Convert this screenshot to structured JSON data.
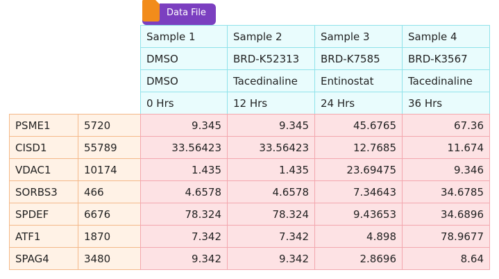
{
  "tag": {
    "label": "Data File",
    "icon": "document-icon"
  },
  "samples": [
    {
      "name": "Sample 1",
      "compound_id": "DMSO",
      "compound": "DMSO",
      "time": "0 Hrs"
    },
    {
      "name": "Sample 2",
      "compound_id": "BRD-K52313",
      "compound": "Tacedinaline",
      "time": "12 Hrs"
    },
    {
      "name": "Sample 3",
      "compound_id": "BRD-K7585",
      "compound": "Entinostat",
      "time": "24 Hrs"
    },
    {
      "name": "Sample 4",
      "compound_id": "BRD-K3567",
      "compound": "Tacedinaline",
      "time": "36 Hrs"
    }
  ],
  "genes": [
    {
      "symbol": "PSME1",
      "id": "5720",
      "values": [
        "9.345",
        "9.345",
        "45.6765",
        "67.36"
      ]
    },
    {
      "symbol": "CISD1",
      "id": "55789",
      "values": [
        "33.56423",
        "33.56423",
        "12.7685",
        "11.674"
      ]
    },
    {
      "symbol": "VDAC1",
      "id": "10174",
      "values": [
        "1.435",
        "1.435",
        "23.69475",
        "9.346"
      ]
    },
    {
      "symbol": "SORBS3",
      "id": "466",
      "values": [
        "4.6578",
        "4.6578",
        "7.34643",
        "34.6785"
      ]
    },
    {
      "symbol": "SPDEF",
      "id": "6676",
      "values": [
        "78.324",
        "78.324",
        "9.43653",
        "34.6896"
      ]
    },
    {
      "symbol": "ATF1",
      "id": "1870",
      "values": [
        "7.342",
        "7.342",
        "4.898",
        "78.9677"
      ]
    },
    {
      "symbol": "SPAG4",
      "id": "3480",
      "values": [
        "9.342",
        "9.342",
        "2.8696",
        "8.64"
      ]
    }
  ],
  "colors": {
    "tag": "#7b3fc0",
    "tag_icon": "#f28c1b",
    "header_fill": "#e9fcfd",
    "header_border": "#8fe2ea",
    "label_fill": "#fff2e6",
    "label_border": "#f4b889",
    "data_fill": "#fde2e4",
    "data_border": "#f3a7ae"
  }
}
